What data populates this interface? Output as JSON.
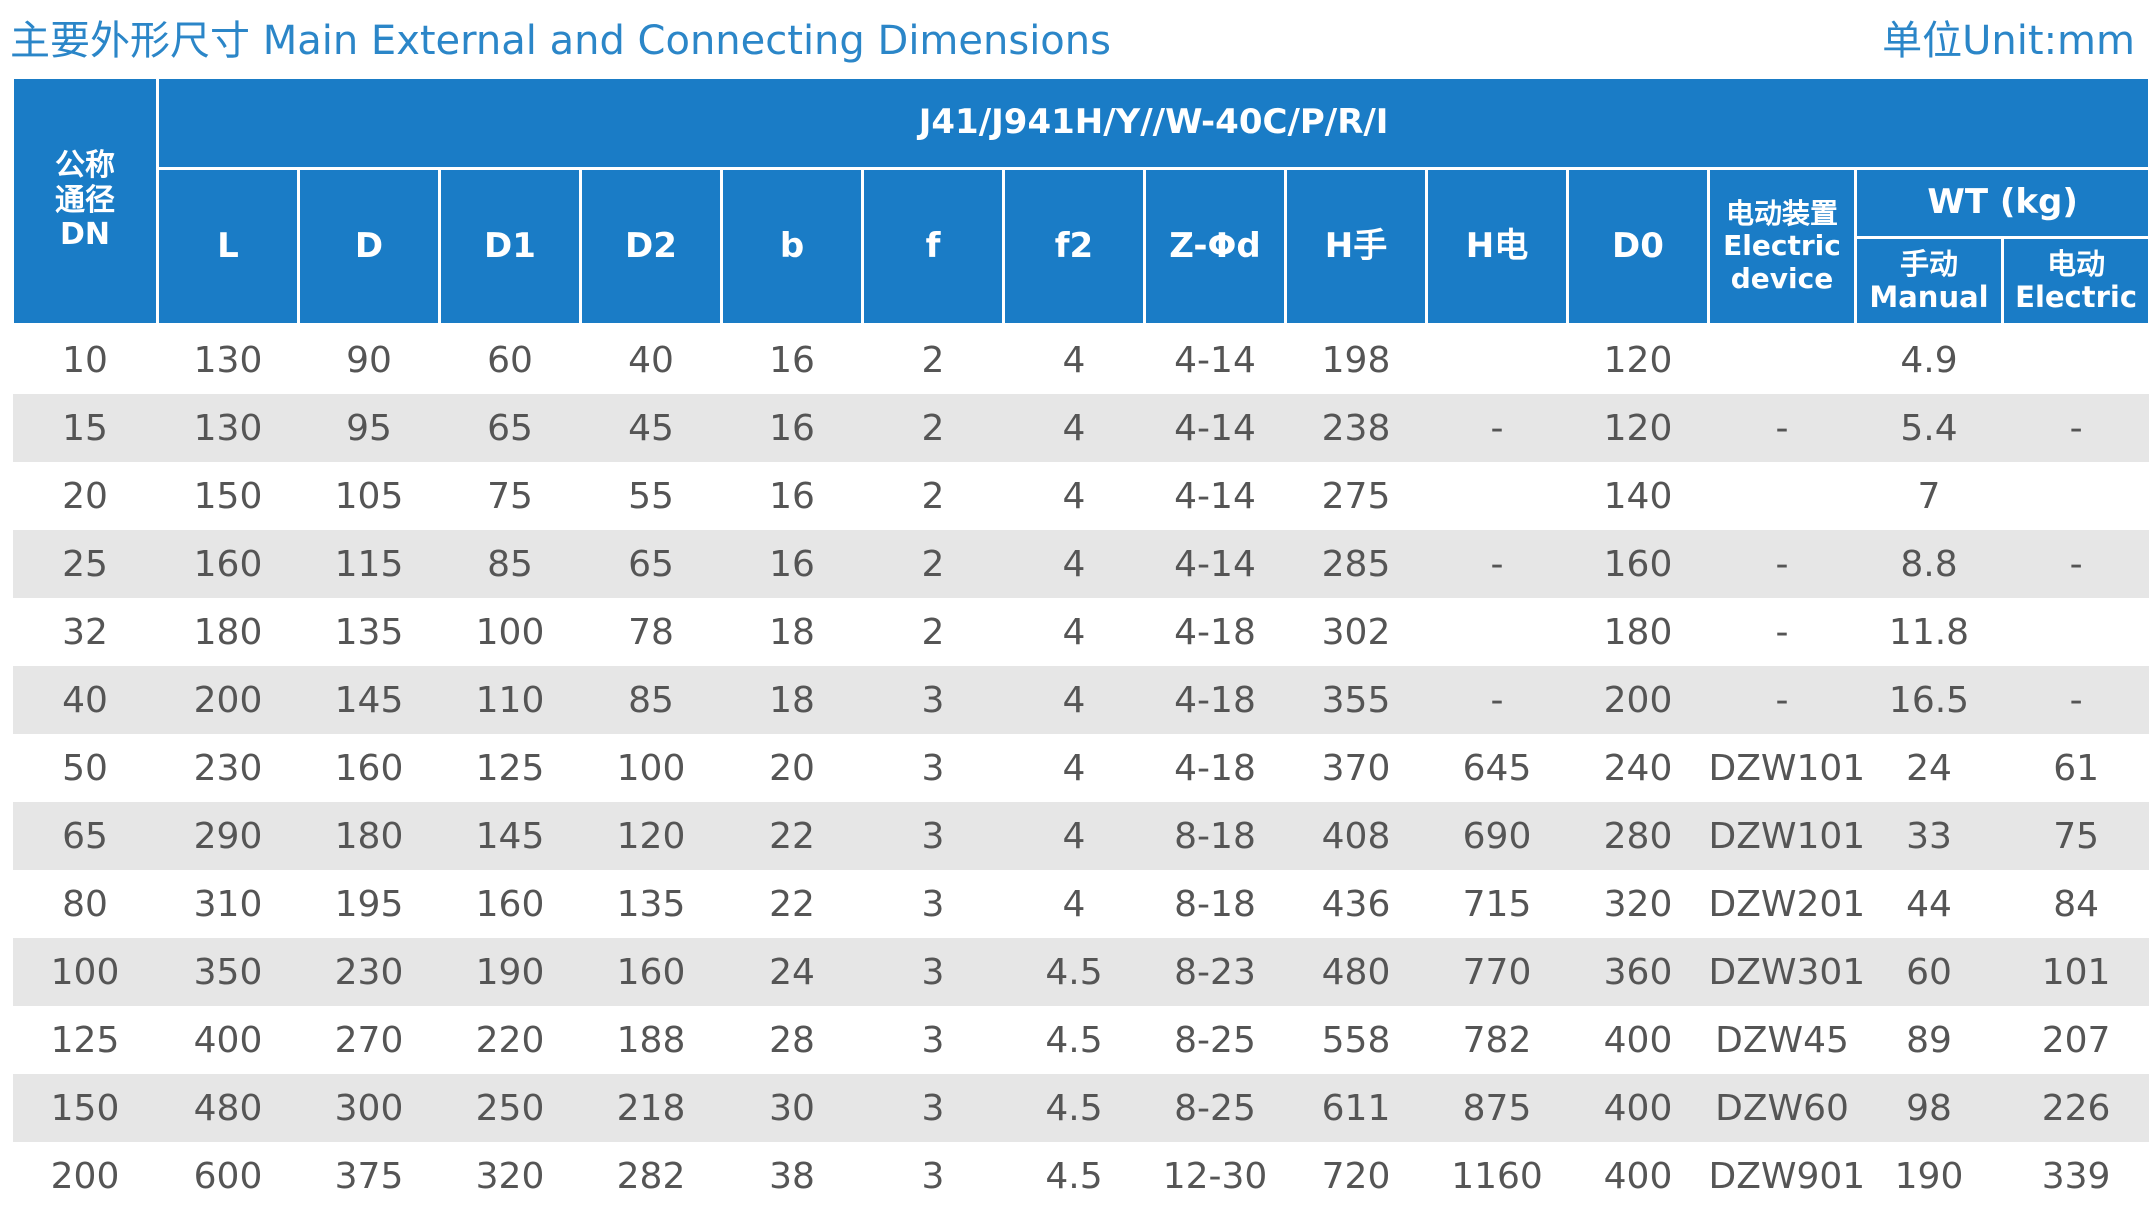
{
  "header": {
    "title": "主要外形尺寸 Main External and Connecting Dimensions",
    "unit": "单位Unit:mm"
  },
  "table": {
    "model": "J41/J941H/Y//W-40C/P/R/I",
    "dn_header": [
      "公称",
      "通径",
      "DN"
    ],
    "columns": [
      "L",
      "D",
      "D1",
      "D2",
      "b",
      "f",
      "f2",
      "Z-Φd",
      "H手",
      "H电",
      "D0"
    ],
    "electric_device_header": [
      "电动装置",
      "Electric",
      "device"
    ],
    "wt_header": "WT (kg)",
    "wt_manual": [
      "手动",
      "Manual"
    ],
    "wt_electric": [
      "电动",
      "Electric"
    ],
    "rows": [
      [
        "10",
        "130",
        "90",
        "60",
        "40",
        "16",
        "2",
        "4",
        "4-14",
        "198",
        "",
        "120",
        "",
        "4.9",
        ""
      ],
      [
        "15",
        "130",
        "95",
        "65",
        "45",
        "16",
        "2",
        "4",
        "4-14",
        "238",
        "-",
        "120",
        "-",
        "5.4",
        "-"
      ],
      [
        "20",
        "150",
        "105",
        "75",
        "55",
        "16",
        "2",
        "4",
        "4-14",
        "275",
        "",
        "140",
        "",
        "7",
        ""
      ],
      [
        "25",
        "160",
        "115",
        "85",
        "65",
        "16",
        "2",
        "4",
        "4-14",
        "285",
        "-",
        "160",
        "-",
        "8.8",
        "-"
      ],
      [
        "32",
        "180",
        "135",
        "100",
        "78",
        "18",
        "2",
        "4",
        "4-18",
        "302",
        "",
        "180",
        "-",
        "11.8",
        ""
      ],
      [
        "40",
        "200",
        "145",
        "110",
        "85",
        "18",
        "3",
        "4",
        "4-18",
        "355",
        "-",
        "200",
        "-",
        "16.5",
        "-"
      ],
      [
        "50",
        "230",
        "160",
        "125",
        "100",
        "20",
        "3",
        "4",
        "4-18",
        "370",
        "645",
        "240",
        "DZW101",
        "24",
        "61"
      ],
      [
        "65",
        "290",
        "180",
        "145",
        "120",
        "22",
        "3",
        "4",
        "8-18",
        "408",
        "690",
        "280",
        "DZW101",
        "33",
        "75"
      ],
      [
        "80",
        "310",
        "195",
        "160",
        "135",
        "22",
        "3",
        "4",
        "8-18",
        "436",
        "715",
        "320",
        "DZW201",
        "44",
        "84"
      ],
      [
        "100",
        "350",
        "230",
        "190",
        "160",
        "24",
        "3",
        "4.5",
        "8-23",
        "480",
        "770",
        "360",
        "DZW301",
        "60",
        "101"
      ],
      [
        "125",
        "400",
        "270",
        "220",
        "188",
        "28",
        "3",
        "4.5",
        "8-25",
        "558",
        "782",
        "400",
        "DZW45",
        "89",
        "207"
      ],
      [
        "150",
        "480",
        "300",
        "250",
        "218",
        "30",
        "3",
        "4.5",
        "8-25",
        "611",
        "875",
        "400",
        "DZW60",
        "98",
        "226"
      ],
      [
        "200",
        "600",
        "375",
        "320",
        "282",
        "38",
        "3",
        "4.5",
        "12-30",
        "720",
        "1160",
        "400",
        "DZW901",
        "190",
        "339"
      ]
    ]
  }
}
